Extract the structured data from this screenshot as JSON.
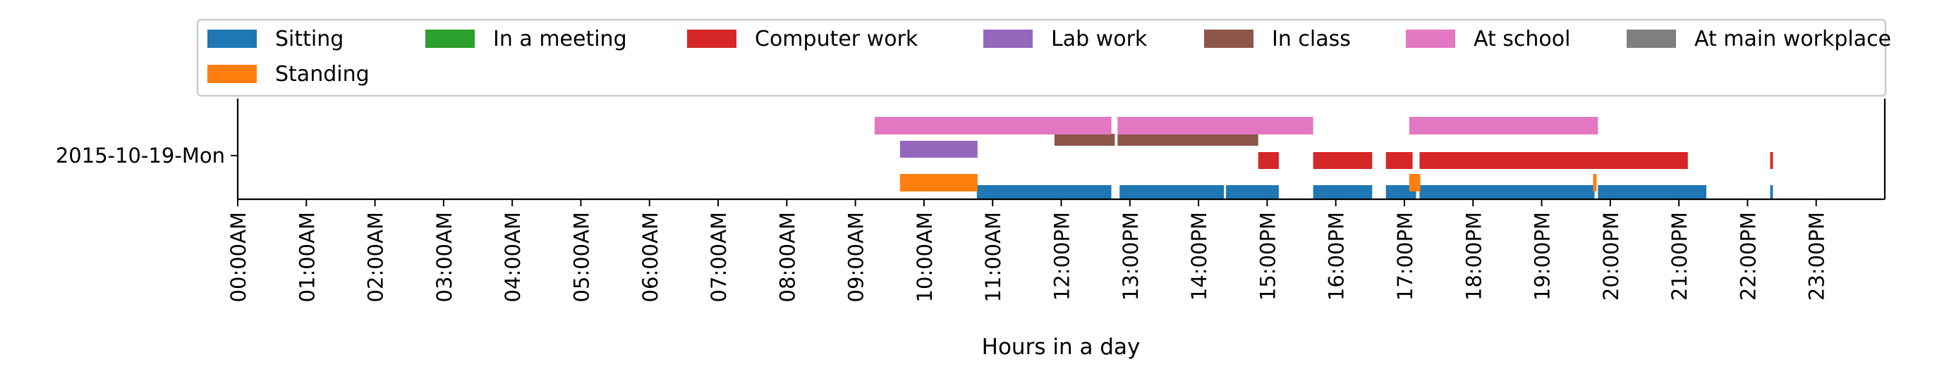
{
  "chart_data": {
    "type": "timeline",
    "title": "",
    "xlabel": "Hours in a day",
    "ylabel": "",
    "xlim": [
      0,
      24
    ],
    "x_tick_labels": [
      "00:00AM",
      "01:00AM",
      "02:00AM",
      "03:00AM",
      "04:00AM",
      "05:00AM",
      "06:00AM",
      "07:00AM",
      "08:00AM",
      "09:00AM",
      "10:00AM",
      "11:00AM",
      "12:00PM",
      "13:00PM",
      "14:00PM",
      "15:00PM",
      "16:00PM",
      "17:00PM",
      "18:00PM",
      "19:00PM",
      "20:00PM",
      "21:00PM",
      "22:00PM",
      "23:00PM"
    ],
    "categories": [
      "2015-10-19-Mon"
    ],
    "legend_position": "top",
    "legend": [
      {
        "name": "Sitting",
        "color": "#1f77b4"
      },
      {
        "name": "Standing",
        "color": "#ff7f0e"
      },
      {
        "name": "In a meeting",
        "color": "#2ca02c"
      },
      {
        "name": "Computer work",
        "color": "#d62728"
      },
      {
        "name": "Lab work",
        "color": "#9467bd"
      },
      {
        "name": "In class",
        "color": "#8c564b"
      },
      {
        "name": "At school",
        "color": "#e377c2"
      },
      {
        "name": "At main workplace",
        "color": "#7f7f7f"
      }
    ],
    "series": [
      {
        "name": "Sitting",
        "color": "#1f77b4",
        "intervals": [
          [
            10.77,
            12.73
          ],
          [
            12.85,
            14.37
          ],
          [
            14.4,
            15.17
          ],
          [
            15.67,
            16.53
          ],
          [
            16.73,
            17.17
          ],
          [
            17.22,
            19.77
          ],
          [
            19.82,
            21.4
          ],
          [
            22.33,
            22.37
          ]
        ]
      },
      {
        "name": "Standing",
        "color": "#ff7f0e",
        "intervals": [
          [
            9.65,
            10.78
          ],
          [
            17.07,
            17.23
          ],
          [
            19.75,
            19.8
          ]
        ]
      },
      {
        "name": "In a meeting",
        "color": "#2ca02c",
        "intervals": []
      },
      {
        "name": "Computer work",
        "color": "#d62728",
        "intervals": [
          [
            14.87,
            15.17
          ],
          [
            15.67,
            16.53
          ],
          [
            16.73,
            17.12
          ],
          [
            17.22,
            21.13
          ],
          [
            22.33,
            22.37
          ]
        ]
      },
      {
        "name": "Lab work",
        "color": "#9467bd",
        "intervals": [
          [
            9.65,
            10.78
          ]
        ]
      },
      {
        "name": "In class",
        "color": "#8c564b",
        "intervals": [
          [
            11.9,
            12.78
          ],
          [
            12.82,
            14.87
          ]
        ]
      },
      {
        "name": "At school",
        "color": "#e377c2",
        "intervals": [
          [
            9.28,
            12.73
          ],
          [
            12.82,
            15.67
          ],
          [
            17.07,
            19.82
          ]
        ]
      },
      {
        "name": "At main workplace",
        "color": "#7f7f7f",
        "intervals": []
      }
    ]
  }
}
